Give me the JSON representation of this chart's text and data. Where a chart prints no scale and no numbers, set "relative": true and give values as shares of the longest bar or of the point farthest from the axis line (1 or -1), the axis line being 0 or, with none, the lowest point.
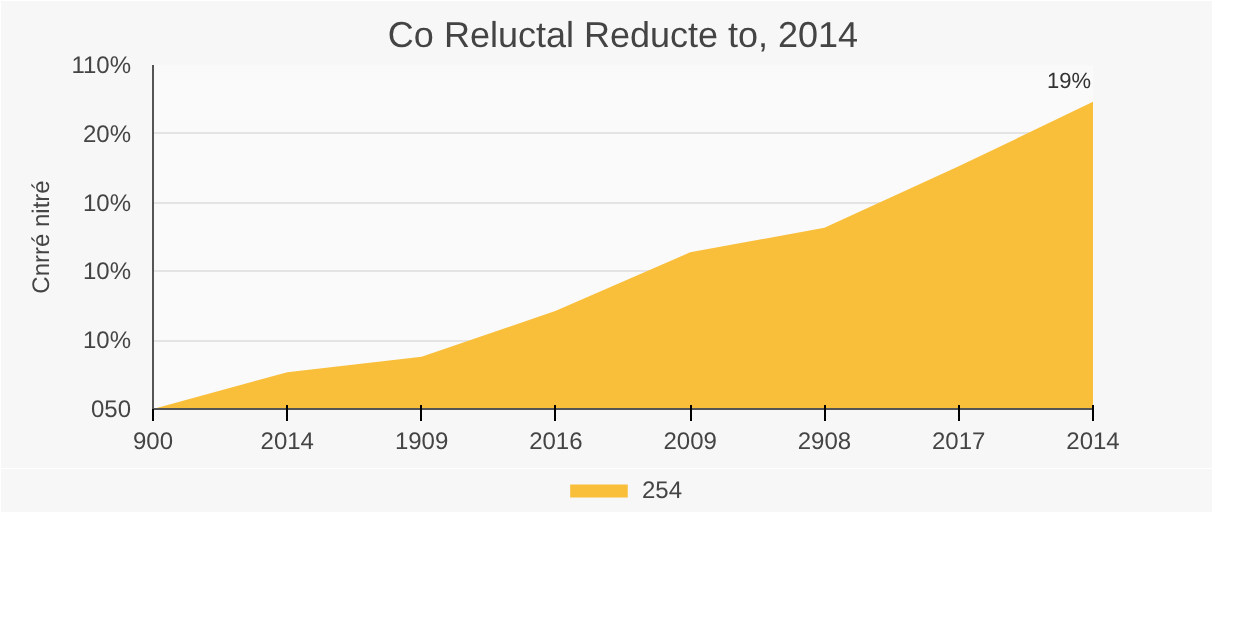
{
  "chart_data": {
    "type": "area",
    "title": "Co Reluctal Reducte to, 2014",
    "ylabel": "Cnrré nitré",
    "relative": true,
    "categories": [
      "900",
      "2014",
      "1909",
      "2016",
      "2009",
      "2908",
      "2017",
      "2014"
    ],
    "series": [
      {
        "name": "254",
        "color": "#f9bf3b",
        "values": [
          0,
          0.12,
          0.17,
          0.32,
          0.51,
          0.59,
          0.79,
          1
        ]
      }
    ],
    "annotations": [
      "050",
      "10%",
      "10%",
      "10%",
      "20%",
      "110%",
      "19%"
    ],
    "grid": "y",
    "legend": "bottom"
  }
}
